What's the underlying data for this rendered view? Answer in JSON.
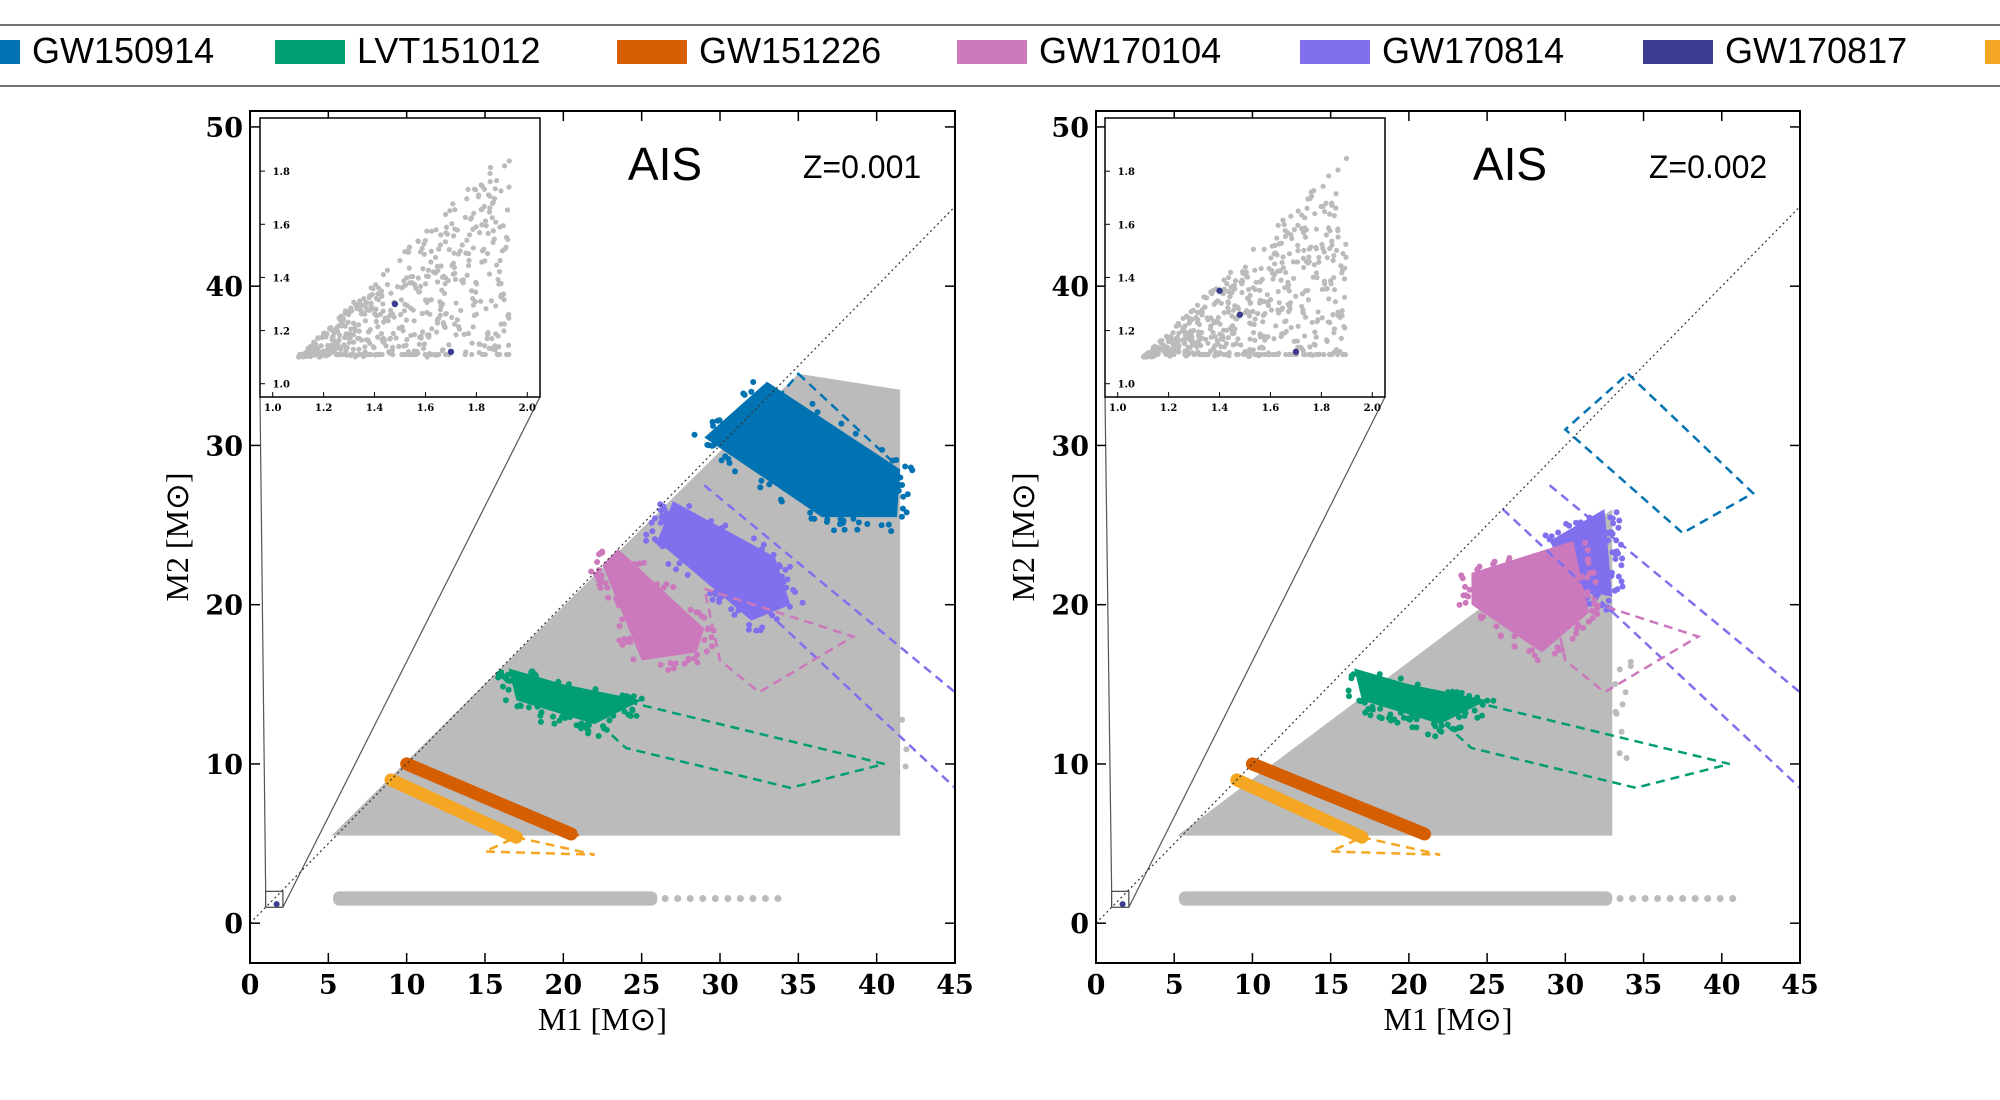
{
  "legend": {
    "items": [
      {
        "label": "GW150914",
        "color": "#0173b2"
      },
      {
        "label": "LVT151012",
        "color": "#029e73"
      },
      {
        "label": "GW151226",
        "color": "#d55e00"
      },
      {
        "label": "GW170104",
        "color": "#cc78bc"
      },
      {
        "label": "GW170814",
        "color": "#8070ee"
      },
      {
        "label": "GW170817",
        "color": "#3a3d8f"
      },
      {
        "label": "",
        "color": "#f5a623"
      }
    ]
  },
  "chart_data": [
    {
      "type": "scatter",
      "title": "AIS",
      "annotation": "Z=0.001",
      "xlabel": "M1 [M⊙]",
      "ylabel": "M2 [M⊙]",
      "xlim": [
        0,
        45
      ],
      "ylim": [
        -2.5,
        51
      ],
      "xticks": [
        0,
        5,
        10,
        15,
        20,
        25,
        30,
        35,
        40,
        45
      ],
      "yticks": [
        0,
        10,
        20,
        30,
        40,
        50
      ],
      "background_color": "#bbbbbb",
      "diagonal": "M1 = M2 (dotted)",
      "grey_population": {
        "polygon": [
          [
            5.2,
            5.5
          ],
          [
            41.5,
            5.5
          ],
          [
            41.5,
            33.5
          ],
          [
            35,
            34.5
          ],
          [
            5.2,
            5.5
          ]
        ],
        "strip": {
          "x": [
            5.3,
            26
          ],
          "y": [
            1.1,
            2.0
          ]
        }
      },
      "series": [
        {
          "name": "GW150914",
          "color": "#0173b2",
          "region": [
            [
              33,
              34
            ],
            [
              41.5,
              28.5
            ],
            [
              41.3,
              25.5
            ],
            [
              36.5,
              25.5
            ],
            [
              29,
              30.5
            ]
          ]
        },
        {
          "name": "GW170814",
          "color": "#8070ee",
          "region": [
            [
              27,
              26.5
            ],
            [
              33.5,
              23
            ],
            [
              34.5,
              20
            ],
            [
              32,
              19
            ],
            [
              26,
              24
            ]
          ]
        },
        {
          "name": "GW170104",
          "color": "#cc78bc",
          "region": [
            [
              23.5,
              23.5
            ],
            [
              29,
              18.5
            ],
            [
              28.5,
              17
            ],
            [
              25,
              16.5
            ],
            [
              22.5,
              22.5
            ]
          ]
        },
        {
          "name": "LVT151012",
          "color": "#029e73",
          "region": [
            [
              16.5,
              16
            ],
            [
              20,
              15
            ],
            [
              25,
              14
            ],
            [
              22,
              12.5
            ],
            [
              17,
              14
            ]
          ]
        },
        {
          "name": "GW151226",
          "color": "#d55e00",
          "band": {
            "x0": 10,
            "y0": 10,
            "x1": 20.5,
            "y1": 5.6
          }
        },
        {
          "name": "",
          "color": "#f5a623",
          "band": {
            "x0": 9,
            "y0": 9,
            "x1": 17,
            "y1": 5.4
          }
        }
      ],
      "dashed_outlines": [
        {
          "color": "#0173b2",
          "points": [
            [
              35,
              34.5
            ],
            [
              41,
              29
            ],
            [
              38,
              26
            ],
            [
              32,
              31
            ]
          ]
        },
        {
          "color": "#8070ee",
          "points": [
            [
              29,
              27.5
            ],
            [
              45,
              14.5
            ]
          ]
        },
        {
          "color": "#8070ee",
          "points": [
            [
              26,
              26
            ],
            [
              45,
              8.5
            ]
          ]
        },
        {
          "color": "#cc78bc",
          "points": [
            [
              29,
              21
            ],
            [
              38.5,
              18
            ],
            [
              32.5,
              14.5
            ],
            [
              30,
              16.5
            ]
          ]
        },
        {
          "color": "#029e73",
          "points": [
            [
              19.5,
              15
            ],
            [
              40.5,
              10
            ],
            [
              34.5,
              8.5
            ],
            [
              24,
              11
            ]
          ]
        },
        {
          "color": "#d55e00",
          "points": [
            [
              20,
              5.8
            ],
            [
              21,
              5.5
            ]
          ]
        },
        {
          "color": "#f5a623",
          "points": [
            [
              17,
              5.4
            ],
            [
              22,
              4.3
            ],
            [
              15,
              4.5
            ]
          ]
        }
      ],
      "inset": {
        "xlim": [
          0.95,
          2.05
        ],
        "ylim": [
          0.95,
          2.0
        ],
        "xticks": [
          "1.0",
          "1.2",
          "1.4",
          "1.6",
          "1.8",
          "2.0"
        ],
        "yticks": [
          "1.0",
          "1.2",
          "1.4",
          "1.6",
          "1.8"
        ],
        "highlight": [
          [
            1.48,
            1.3
          ],
          [
            1.7,
            1.12
          ]
        ]
      }
    },
    {
      "type": "scatter",
      "title": "AIS",
      "annotation": "Z=0.002",
      "xlabel": "M1 [M⊙]",
      "ylabel": "M2 [M⊙]",
      "xlim": [
        0,
        45
      ],
      "ylim": [
        -2.5,
        51
      ],
      "xticks": [
        0,
        5,
        10,
        15,
        20,
        25,
        30,
        35,
        40,
        45
      ],
      "yticks": [
        0,
        10,
        20,
        30,
        40,
        50
      ],
      "background_color": "#bbbbbb",
      "diagonal": "M1 = M2 (dotted)",
      "grey_population": {
        "polygon": [
          [
            5.2,
            5.5
          ],
          [
            33,
            5.5
          ],
          [
            33,
            26
          ],
          [
            5.2,
            5.5
          ]
        ],
        "strip": {
          "x": [
            5.3,
            33
          ],
          "y": [
            1.1,
            2.0
          ]
        }
      },
      "series": [
        {
          "name": "GW170814",
          "color": "#8070ee",
          "region": [
            [
              29,
              24
            ],
            [
              32.5,
              26
            ],
            [
              33,
              20.5
            ],
            [
              30.5,
              21
            ]
          ]
        },
        {
          "name": "GW170104",
          "color": "#cc78bc",
          "region": [
            [
              24,
              22
            ],
            [
              30.5,
              24
            ],
            [
              31.5,
              19.5
            ],
            [
              28.5,
              17
            ],
            [
              24,
              20
            ]
          ]
        },
        {
          "name": "LVT151012",
          "color": "#029e73",
          "region": [
            [
              16.5,
              16
            ],
            [
              20,
              15
            ],
            [
              25,
              14
            ],
            [
              22,
              12.5
            ],
            [
              17,
              14
            ]
          ]
        },
        {
          "name": "GW151226",
          "color": "#d55e00",
          "band": {
            "x0": 10,
            "y0": 10,
            "x1": 21,
            "y1": 5.6
          }
        },
        {
          "name": "",
          "color": "#f5a623",
          "band": {
            "x0": 9,
            "y0": 9,
            "x1": 17,
            "y1": 5.4
          }
        }
      ],
      "dashed_outlines": [
        {
          "color": "#0173b2",
          "points": [
            [
              34,
              34.5
            ],
            [
              42,
              27
            ],
            [
              37.5,
              24.5
            ],
            [
              30,
              31
            ]
          ]
        },
        {
          "color": "#8070ee",
          "points": [
            [
              29,
              27.5
            ],
            [
              45,
              14.5
            ]
          ]
        },
        {
          "color": "#8070ee",
          "points": [
            [
              26,
              26
            ],
            [
              45,
              8.5
            ]
          ]
        },
        {
          "color": "#cc78bc",
          "points": [
            [
              29,
              21
            ],
            [
              38.5,
              18
            ],
            [
              32.5,
              14.5
            ],
            [
              30,
              16.5
            ]
          ]
        },
        {
          "color": "#029e73",
          "points": [
            [
              19.5,
              15
            ],
            [
              40.5,
              10
            ],
            [
              34.5,
              8.5
            ],
            [
              24,
              11
            ]
          ]
        },
        {
          "color": "#f5a623",
          "points": [
            [
              17,
              5.4
            ],
            [
              22,
              4.3
            ],
            [
              15,
              4.5
            ]
          ]
        }
      ],
      "inset": {
        "xlim": [
          0.95,
          2.05
        ],
        "ylim": [
          0.95,
          2.0
        ],
        "xticks": [
          "1.0",
          "1.2",
          "1.4",
          "1.6",
          "1.8",
          "2.0"
        ],
        "yticks": [
          "1.0",
          "1.2",
          "1.4",
          "1.6",
          "1.8"
        ],
        "highlight": [
          [
            1.4,
            1.35
          ],
          [
            1.48,
            1.26
          ],
          [
            1.7,
            1.12
          ]
        ]
      }
    }
  ]
}
